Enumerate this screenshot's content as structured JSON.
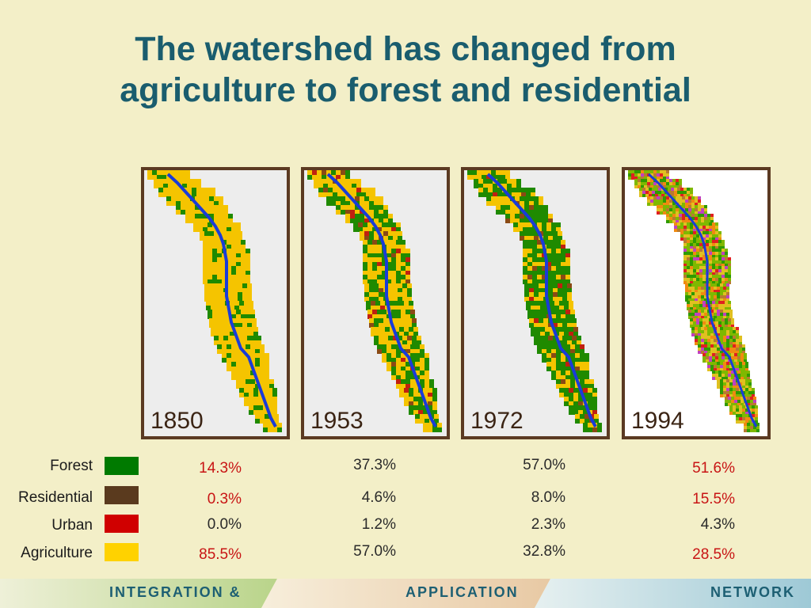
{
  "title": {
    "line1": "The watershed has changed from",
    "line2": "agriculture to forest and residential"
  },
  "panels": [
    {
      "year": "1850"
    },
    {
      "year": "1953"
    },
    {
      "year": "1972"
    },
    {
      "year": "1994"
    }
  ],
  "legend": [
    {
      "label": "Forest",
      "color": "#007a00",
      "values": [
        "14.3%",
        "37.3%",
        "57.0%",
        "51.6%"
      ]
    },
    {
      "label": "Residential",
      "color": "#5a3a1e",
      "values": [
        "0.3%",
        "4.6%",
        "8.0%",
        "15.5%"
      ]
    },
    {
      "label": "Urban",
      "color": "#d00000",
      "values": [
        "0.0%",
        "1.2%",
        "2.3%",
        "4.3%"
      ]
    },
    {
      "label": "Agriculture",
      "color": "#ffd200",
      "values": [
        "85.5%",
        "57.0%",
        "32.8%",
        "28.5%"
      ]
    }
  ],
  "footer": {
    "part1": "INTEGRATION &",
    "part2": "APPLICATION",
    "part3": "NETWORK"
  }
}
